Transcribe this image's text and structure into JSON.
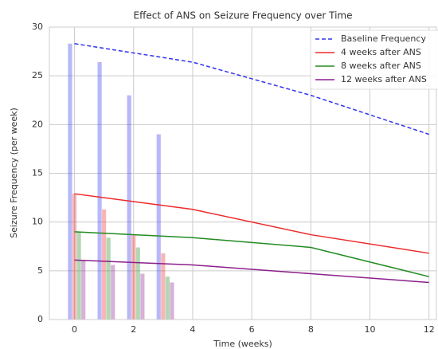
{
  "chart_data": {
    "type": "line",
    "title": "Effect of ANS on Seizure Frequency over Time",
    "x_label": "Time (weeks)",
    "y_label": "Seizure Frequency (per week)",
    "x": [
      0,
      4,
      8,
      12
    ],
    "series": [
      {
        "name": "Baseline Frequency",
        "color": "#3333ee",
        "dashed": true,
        "values": [
          28.3,
          26.4,
          23,
          19
        ]
      },
      {
        "name": "4 weeks after ANS",
        "color": "#ee2a2a",
        "values": [
          12.9,
          11.3,
          8.7,
          6.8
        ]
      },
      {
        "name": "8 weeks after ANS",
        "color": "#228b22",
        "values": [
          9,
          8.4,
          7.4,
          4.4
        ]
      },
      {
        "name": "12 weeks after ANS",
        "color": "#8b1f8b",
        "values": [
          6.1,
          5.6,
          4.7,
          3.8
        ]
      }
    ],
    "xlim": [
      -0.85,
      12.25
    ],
    "ylim": [
      0,
      30
    ],
    "xticks": [
      0,
      2,
      4,
      6,
      8,
      10,
      12
    ],
    "yticks": [
      0,
      5,
      10,
      15,
      20,
      25,
      30
    ],
    "grid": true,
    "legend": "upper right"
  }
}
